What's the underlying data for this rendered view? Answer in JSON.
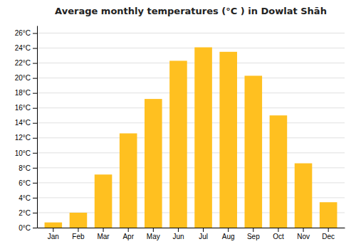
{
  "chart_data": {
    "type": "bar",
    "title": "Average monthly temperatures (°C ) in Dowlat Shāh",
    "categories": [
      "Jan",
      "Feb",
      "Mar",
      "Apr",
      "May",
      "Jun",
      "Jul",
      "Aug",
      "Sep",
      "Oct",
      "Nov",
      "Dec"
    ],
    "values": [
      0.7,
      2.0,
      7.1,
      12.6,
      17.2,
      22.3,
      24.1,
      23.5,
      20.3,
      15.0,
      8.6,
      3.4
    ],
    "color": "#FFC020",
    "ylim": [
      0,
      27
    ],
    "yticks": [
      {
        "value": 0,
        "label": "0°C"
      },
      {
        "value": 2,
        "label": "2°C"
      },
      {
        "value": 4,
        "label": "4°C"
      },
      {
        "value": 6,
        "label": "6°C"
      },
      {
        "value": 8,
        "label": "8°C"
      },
      {
        "value": 10,
        "label": "10°C"
      },
      {
        "value": 12,
        "label": "12°C"
      },
      {
        "value": 14,
        "label": "14°C"
      },
      {
        "value": 16,
        "label": "16°C"
      },
      {
        "value": 18,
        "label": "18°C"
      },
      {
        "value": 20,
        "label": "20°C"
      },
      {
        "value": 22,
        "label": "22°C"
      },
      {
        "value": 24,
        "label": "24°C"
      },
      {
        "value": 26,
        "label": "26°C"
      }
    ],
    "grid": true
  }
}
